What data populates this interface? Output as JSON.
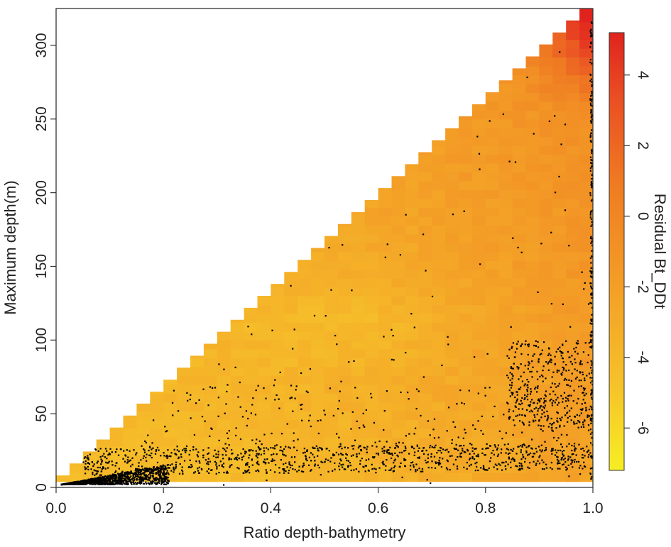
{
  "chart_data": {
    "type": "heatmap",
    "title": "",
    "xlabel": "Ratio depth-bathymetry",
    "ylabel": "Maximum depth(m)",
    "xlim": [
      0.0,
      1.0
    ],
    "ylim": [
      0,
      325
    ],
    "x_ticks": [
      "0.0",
      "0.2",
      "0.4",
      "0.6",
      "0.8",
      "1.0"
    ],
    "y_ticks": [
      "0",
      "50",
      "100",
      "150",
      "200",
      "250",
      "300"
    ],
    "colorbar": {
      "label": "Residual Bt_DDt",
      "range": [
        -7.2,
        5.2
      ],
      "ticks": [
        "-6",
        "-4",
        "-2",
        "0",
        "2",
        "4"
      ],
      "colors": [
        "#f6ee24",
        "#f6c12a",
        "#f39a26",
        "#ef7c22",
        "#ea4f23",
        "#e0231e"
      ]
    },
    "description_of_fill": "Triangular region: defined where max depth <= ratio * 325 (approx); residual is mostly between -5 and -1, rising to about +4 near ratio 1.0 and depth above 280 m",
    "surface_samples": [
      {
        "ratio": 0.1,
        "depth": 20,
        "residual": -4.5
      },
      {
        "ratio": 0.3,
        "depth": 50,
        "residual": -4.8
      },
      {
        "ratio": 0.5,
        "depth": 100,
        "residual": -5.2
      },
      {
        "ratio": 0.6,
        "depth": 150,
        "residual": -3.0
      },
      {
        "ratio": 0.8,
        "depth": 200,
        "residual": -2.5
      },
      {
        "ratio": 0.9,
        "depth": 260,
        "residual": -1.5
      },
      {
        "ratio": 1.0,
        "depth": 300,
        "residual": 4.0
      },
      {
        "ratio": 1.0,
        "depth": 150,
        "residual": -1.0
      }
    ],
    "points": {
      "description": "Observation points (black dots), densest near ratio 0-0.15 and depth 0-15 m, a band around depth 10-25 m across all ratios, a cluster near ratio 0.85-1.0 and depth 50-100 m, sparse above",
      "color": "#000000"
    }
  }
}
